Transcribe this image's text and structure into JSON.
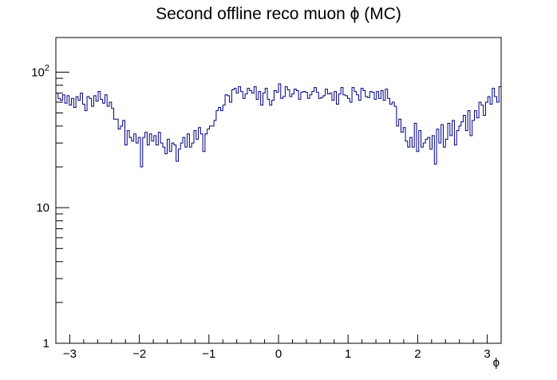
{
  "chart_data": {
    "type": "line",
    "title": "Second offline reco muon ϕ (MC)",
    "xlabel": "ϕ",
    "ylabel": "",
    "xlim": [
      -3.2,
      3.2
    ],
    "ylim": [
      1,
      180
    ],
    "yscale": "log",
    "x_ticks": [
      -3,
      -2,
      -1,
      0,
      1,
      2,
      3
    ],
    "x_tick_labels": [
      "−3",
      "−2",
      "−1",
      "0",
      "1",
      "2",
      "3"
    ],
    "y_ticks": [
      {
        "value": 1,
        "base": "1",
        "exp": ""
      },
      {
        "value": 10,
        "base": "10",
        "exp": ""
      },
      {
        "value": 100,
        "base": "10",
        "exp": "2"
      }
    ],
    "line_color": "#000080",
    "grid": false,
    "series": [
      {
        "bin_edges_range": [
          -3.2,
          3.2
        ],
        "n_bins": 200,
        "values": [
          70,
          64,
          62,
          68,
          59,
          67,
          57,
          64,
          55,
          66,
          62,
          70,
          58,
          52,
          66,
          64,
          56,
          67,
          61,
          72,
          63,
          59,
          68,
          56,
          60,
          54,
          45,
          45,
          38,
          40,
          44,
          29,
          37,
          33,
          31,
          35,
          30,
          33,
          20,
          33,
          36,
          29,
          35,
          31,
          34,
          29,
          36,
          30,
          28,
          25,
          32,
          26,
          30,
          29,
          22,
          27,
          30,
          33,
          28,
          35,
          28,
          30,
          37,
          32,
          39,
          35,
          26,
          35,
          38,
          40,
          40,
          44,
          52,
          55,
          52,
          57,
          68,
          67,
          60,
          74,
          76,
          70,
          78,
          72,
          64,
          69,
          76,
          73,
          70,
          78,
          63,
          72,
          57,
          70,
          76,
          63,
          57,
          62,
          73,
          71,
          82,
          64,
          66,
          78,
          74,
          66,
          69,
          75,
          73,
          63,
          71,
          72,
          71,
          64,
          68,
          72,
          77,
          71,
          64,
          65,
          67,
          75,
          69,
          70,
          62,
          72,
          58,
          69,
          77,
          68,
          67,
          64,
          60,
          77,
          72,
          68,
          62,
          76,
          73,
          66,
          65,
          72,
          71,
          63,
          72,
          64,
          73,
          62,
          75,
          64,
          58,
          60,
          56,
          40,
          45,
          36,
          39,
          31,
          28,
          33,
          28,
          42,
          26,
          37,
          28,
          30,
          32,
          33,
          27,
          34,
          21,
          38,
          30,
          41,
          28,
          32,
          42,
          34,
          44,
          29,
          37,
          40,
          43,
          48,
          37,
          52,
          34,
          44,
          52,
          46,
          60,
          57,
          48,
          60,
          66,
          58,
          76,
          66,
          60,
          78
        ]
      }
    ]
  }
}
